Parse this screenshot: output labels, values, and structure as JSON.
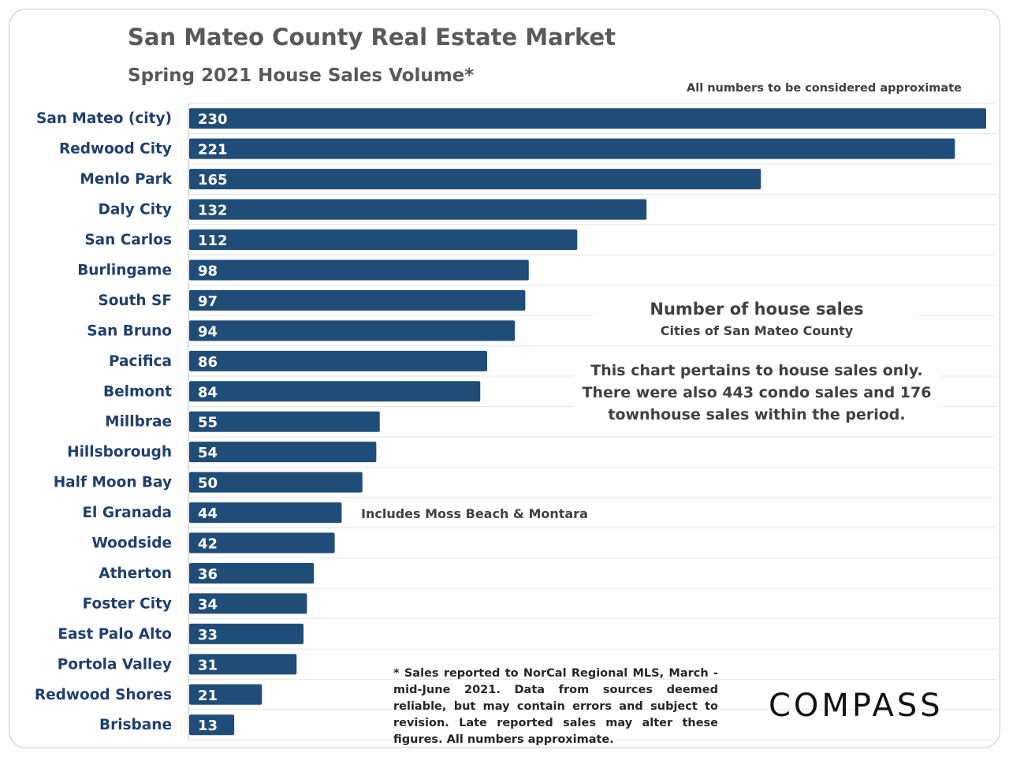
{
  "title": "San Mateo County Real Estate Market",
  "subtitle": "Spring 2021 House Sales Volume*",
  "approx_note": "All numbers to be considered approximate",
  "annotations": {
    "box_title": "Number of house sales",
    "box_subtitle": "Cities of San Mateo County",
    "box_text": "This chart pertains to house sales only. There were also 443 condo sales and 176 townhouse sales within the period.",
    "el_granada_note": "Includes Moss Beach & Montara",
    "footnote": "* Sales reported to NorCal Regional MLS, March - mid-June 2021. Data from sources deemed reliable, but may contain errors and subject to revision. Late reported sales may alter these figures. All numbers approximate."
  },
  "logo": "COMPASS",
  "colors": {
    "bar": "#204d78",
    "category_label": "#1f3f6e",
    "title": "#595959"
  },
  "chart_data": {
    "type": "bar",
    "orientation": "horizontal",
    "categories": [
      "San Mateo (city)",
      "Redwood City",
      "Menlo Park",
      "Daly City",
      "San Carlos",
      "Burlingame",
      "South SF",
      "San Bruno",
      "Pacifica",
      "Belmont",
      "Millbrae",
      "Hillsborough",
      "Half Moon Bay",
      "El Granada",
      "Woodside",
      "Atherton",
      "Foster City",
      "East Palo Alto",
      "Portola Valley",
      "Redwood Shores",
      "Brisbane"
    ],
    "values": [
      230,
      221,
      165,
      132,
      112,
      98,
      97,
      94,
      86,
      84,
      55,
      54,
      50,
      44,
      42,
      36,
      34,
      33,
      31,
      21,
      13
    ],
    "data_labels": true,
    "xlim": [
      0,
      230
    ],
    "grid": true
  }
}
